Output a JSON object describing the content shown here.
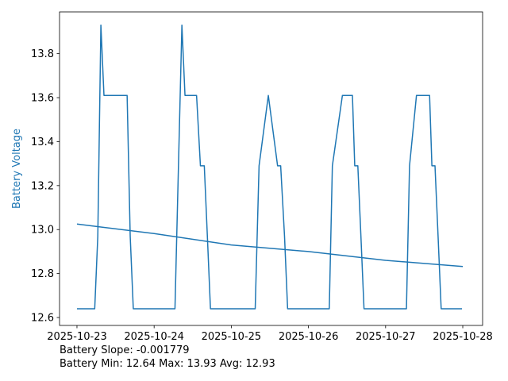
{
  "chart_data": {
    "type": "line",
    "ylabel": "Battery Voltage",
    "ylabel_color": "#1f77b4",
    "annotations": [
      "Battery Slope: -0.001779",
      "Battery Min: 12.64 Max: 13.93 Avg: 12.93"
    ],
    "series": [
      {
        "color": "#1f77b4",
        "x": [
          0,
          0.23,
          0.27,
          0.31,
          0.35,
          0.65,
          0.69,
          0.73,
          1.27,
          1.36,
          1.4,
          1.55,
          1.6,
          1.65,
          1.69,
          1.73,
          2.31,
          2.36,
          2.48,
          2.6,
          2.64,
          2.69,
          2.73,
          3.27,
          3.31,
          3.44,
          3.57,
          3.6,
          3.64,
          3.68,
          3.72,
          4.27,
          4.31,
          4.4,
          4.57,
          4.6,
          4.64,
          4.68,
          4.72,
          4.99
        ],
        "values": [
          12.64,
          12.64,
          12.97,
          13.93,
          13.61,
          13.61,
          12.97,
          12.64,
          12.64,
          13.93,
          13.61,
          13.61,
          13.29,
          13.29,
          12.97,
          12.64,
          12.64,
          13.29,
          13.61,
          13.29,
          13.29,
          12.97,
          12.64,
          12.64,
          13.29,
          13.61,
          13.61,
          13.29,
          13.29,
          12.97,
          12.64,
          12.64,
          13.29,
          13.61,
          13.61,
          13.29,
          13.29,
          12.97,
          12.64,
          12.64
        ]
      },
      {
        "color": "#1f77b4",
        "x": [
          0,
          1,
          2,
          3,
          4,
          5
        ],
        "values": [
          13.025,
          12.982,
          12.93,
          12.9,
          12.86,
          12.832
        ]
      }
    ],
    "xlim": [
      -0.226,
      5.257
    ],
    "xticks": [
      {
        "value": 0,
        "label": "2025-10-23"
      },
      {
        "value": 1,
        "label": "2025-10-24"
      },
      {
        "value": 2,
        "label": "2025-10-25"
      },
      {
        "value": 3,
        "label": "2025-10-26"
      },
      {
        "value": 4,
        "label": "2025-10-27"
      },
      {
        "value": 5,
        "label": "2025-10-28"
      }
    ],
    "ylim": [
      12.564,
      13.99
    ],
    "yticks": [
      12.6,
      12.8,
      {
        "value": 13,
        "label": "13.0"
      },
      13.2,
      13.4,
      13.6,
      13.8
    ],
    "grid": false
  }
}
